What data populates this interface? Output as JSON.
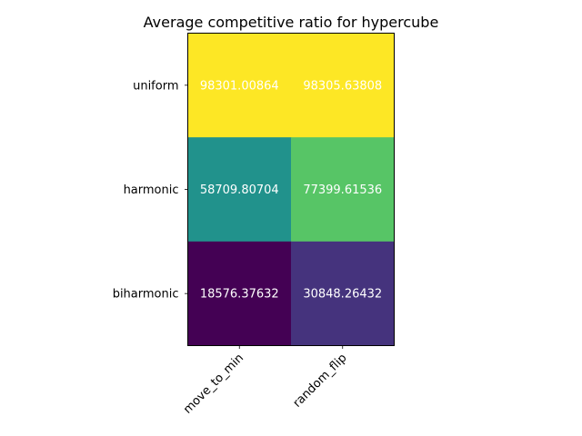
{
  "chart_data": {
    "type": "heatmap",
    "title": "Average competitive ratio for hypercube",
    "xlabel": "",
    "ylabel": "",
    "x_categories": [
      "move_to_min",
      "random_flip"
    ],
    "y_categories": [
      "uniform",
      "harmonic",
      "biharmonic"
    ],
    "values": [
      [
        98301.00864,
        98305.63808
      ],
      [
        58709.80704,
        77399.61536
      ],
      [
        18576.37632,
        30848.26432
      ]
    ],
    "value_labels": [
      [
        "98301.00864",
        "98305.63808"
      ],
      [
        "58709.80704",
        "77399.61536"
      ],
      [
        "18576.37632",
        "30848.26432"
      ]
    ],
    "colormap": "viridis",
    "annotation_color": "#ffffff",
    "x_tick_rotation": "45 degrees",
    "colorbar": false,
    "grid": false
  }
}
